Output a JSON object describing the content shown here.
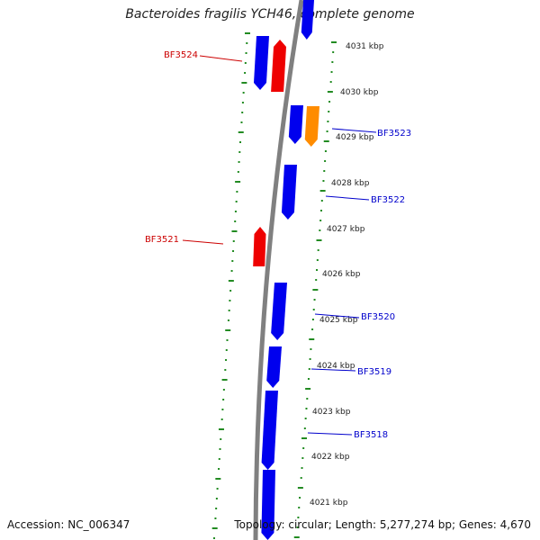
{
  "title": "Bacteroides fragilis YCH46, complete genome",
  "footer": {
    "accession": "Accession: NC_006347",
    "stats": "Topology: circular; Length: 5,277,274 bp; Genes: 4,670"
  },
  "colors": {
    "forward_gene": "#0000ee",
    "reverse_gene": "#ee0000",
    "highlight_gene": "#ff8c00",
    "backbone": "#808080",
    "tick": "#228b22",
    "label_forward": "#0000cc",
    "label_reverse": "#cc0000"
  },
  "kbp_ticks": [
    "4031 kbp",
    "4030 kbp",
    "4029 kbp",
    "4028 kbp",
    "4027 kbp",
    "4026 kbp",
    "4025 kbp",
    "4024 kbp",
    "4023 kbp",
    "4022 kbp",
    "4021 kbp"
  ],
  "gene_labels": [
    {
      "text": "BF3524",
      "strand": "reverse"
    },
    {
      "text": "BF3523",
      "strand": "forward"
    },
    {
      "text": "BF3522",
      "strand": "forward"
    },
    {
      "text": "BF3521",
      "strand": "reverse"
    },
    {
      "text": "BF3520",
      "strand": "forward"
    },
    {
      "text": "BF3519",
      "strand": "forward"
    },
    {
      "text": "BF3518",
      "strand": "forward"
    }
  ]
}
